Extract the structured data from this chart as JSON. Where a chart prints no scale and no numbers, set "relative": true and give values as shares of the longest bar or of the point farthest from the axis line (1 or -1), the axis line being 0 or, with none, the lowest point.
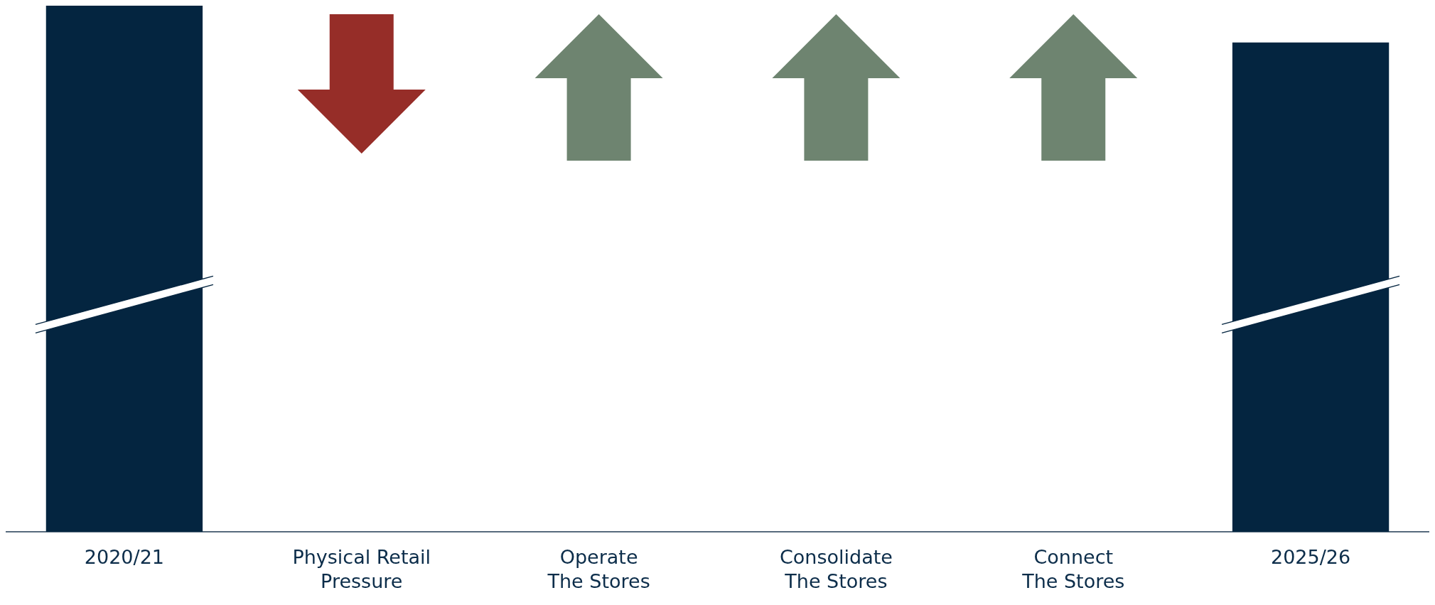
{
  "chart_data": {
    "type": "bar",
    "relative": true,
    "categories": [
      "2020/21",
      "Physical Retail\nPressure",
      "Operate\nThe Stores",
      "Consolidate\nThe Stores",
      "Connect\nThe Stores",
      "2025/26"
    ],
    "values": [
      1,
      null,
      null,
      null,
      null,
      0.93
    ],
    "color": "#042540",
    "grid": false
  }
}
